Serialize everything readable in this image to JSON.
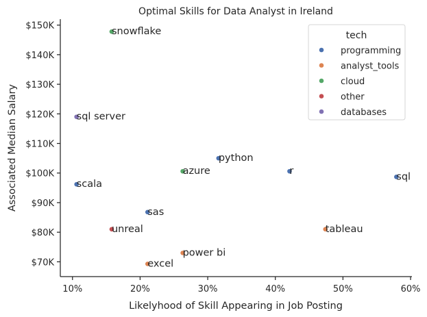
{
  "chart_data": {
    "type": "scatter",
    "title": "Optimal Skills for Data Analyst in Ireland",
    "xlabel": "Likelyhood of Skill Appearing in Job Posting",
    "ylabel": "Associated Median Salary",
    "xlim": [
      8.2,
      60.2
    ],
    "ylim": [
      65000,
      152000
    ],
    "x_ticks": [
      10,
      20,
      30,
      40,
      50,
      60
    ],
    "x_tick_labels": [
      "10%",
      "20%",
      "30%",
      "40%",
      "50%",
      "60%"
    ],
    "y_ticks": [
      70000,
      80000,
      90000,
      100000,
      110000,
      120000,
      130000,
      140000,
      150000
    ],
    "y_tick_labels": [
      "$70K",
      "$80K",
      "$90K",
      "$100K",
      "$110K",
      "$120K",
      "$130K",
      "$140K",
      "$150K"
    ],
    "grid": false,
    "legend": {
      "title": "tech",
      "position": "top-right",
      "entries": [
        {
          "name": "programming",
          "color": "#4c72b0"
        },
        {
          "name": "analyst_tools",
          "color": "#dd8452"
        },
        {
          "name": "cloud",
          "color": "#55a868"
        },
        {
          "name": "other",
          "color": "#c44e52"
        },
        {
          "name": "databases",
          "color": "#8172b3"
        }
      ]
    },
    "points": [
      {
        "label": "snowflake",
        "x": 15.8,
        "y": 147800,
        "tech": "cloud"
      },
      {
        "label": "sql server",
        "x": 10.6,
        "y": 119000,
        "tech": "databases"
      },
      {
        "label": "python",
        "x": 31.6,
        "y": 105000,
        "tech": "programming"
      },
      {
        "label": "azure",
        "x": 26.3,
        "y": 100600,
        "tech": "cloud"
      },
      {
        "label": "r",
        "x": 42.1,
        "y": 100600,
        "tech": "programming"
      },
      {
        "label": "sql",
        "x": 57.9,
        "y": 98700,
        "tech": "programming"
      },
      {
        "label": "scala",
        "x": 10.6,
        "y": 96200,
        "tech": "programming"
      },
      {
        "label": "sas",
        "x": 21.1,
        "y": 86800,
        "tech": "programming"
      },
      {
        "label": "unreal",
        "x": 15.8,
        "y": 81000,
        "tech": "other"
      },
      {
        "label": "tableau",
        "x": 47.4,
        "y": 81000,
        "tech": "analyst_tools"
      },
      {
        "label": "power bi",
        "x": 26.3,
        "y": 73000,
        "tech": "analyst_tools"
      },
      {
        "label": "excel",
        "x": 21.1,
        "y": 69300,
        "tech": "analyst_tools"
      }
    ]
  }
}
